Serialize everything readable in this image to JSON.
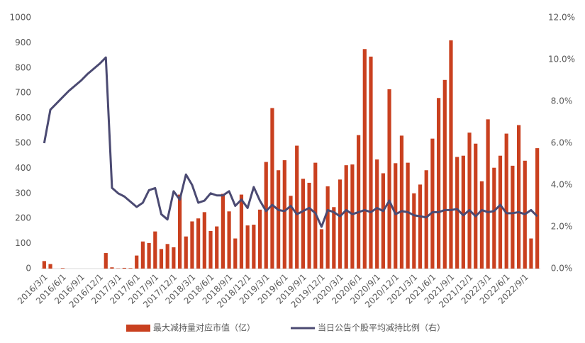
{
  "chart_data": {
    "type": "bar_line",
    "categories": [
      "2016/3/1",
      null,
      null,
      "2016/6/1",
      null,
      null,
      "2016/9/1",
      null,
      null,
      "2016/12/1",
      null,
      null,
      "2017/3/1",
      null,
      null,
      "2017/6/1",
      null,
      null,
      "2017/9/1",
      null,
      null,
      "2017/12/1",
      null,
      null,
      "2018/3/1",
      null,
      null,
      "2018/6/1",
      null,
      null,
      "2018/9/1",
      null,
      null,
      "2018/12/1",
      null,
      null,
      "2019/3/1",
      null,
      null,
      "2019/6/1",
      null,
      null,
      "2019/9/1",
      null,
      null,
      "2019/12/1",
      null,
      null,
      "2020/3/1",
      null,
      null,
      "2020/6/1",
      null,
      null,
      "2020/9/1",
      null,
      null,
      "2020/12/1",
      null,
      null,
      "2021/3/1",
      null,
      null,
      "2021/6/1",
      null,
      null,
      "2021/9/1",
      null,
      null,
      "2021/12/1",
      null,
      null,
      "2022/3/1",
      null,
      null,
      "2022/6/1",
      null,
      null,
      "2022/9/1",
      null,
      null
    ],
    "series": [
      {
        "name": "最大减持量对应市值（亿）",
        "type": "bar",
        "color": "#c9401f",
        "values": [
          30,
          18,
          0,
          2,
          0,
          0,
          0,
          0,
          0,
          0,
          62,
          5,
          1,
          3,
          2,
          52,
          108,
          102,
          148,
          78,
          98,
          85,
          295,
          128,
          188,
          200,
          225,
          150,
          168,
          298,
          228,
          120,
          295,
          172,
          175,
          235,
          425,
          640,
          392,
          432,
          290,
          490,
          358,
          342,
          422,
          157,
          328,
          245,
          355,
          412,
          415,
          532,
          875,
          845,
          435,
          380,
          715,
          420,
          530,
          422,
          300,
          335,
          392,
          518,
          680,
          752,
          910,
          445,
          450,
          542,
          498,
          348,
          595,
          402,
          450,
          538,
          410,
          572,
          430,
          120,
          480
        ]
      },
      {
        "name": "当日公告个股平均减持比例（右）",
        "type": "line",
        "axis": "y2",
        "color": "#4b4a72",
        "values": [
          6.0,
          7.6,
          7.9,
          8.2,
          8.5,
          8.75,
          9.0,
          9.3,
          9.55,
          9.8,
          10.1,
          3.86,
          3.6,
          3.45,
          3.2,
          2.95,
          3.15,
          3.75,
          3.85,
          2.6,
          2.35,
          3.7,
          3.3,
          4.5,
          4.0,
          3.15,
          3.25,
          3.6,
          3.5,
          3.5,
          3.7,
          3.0,
          3.3,
          2.9,
          3.9,
          3.25,
          2.75,
          3.05,
          2.8,
          2.75,
          3.0,
          2.6,
          2.75,
          2.9,
          2.65,
          2.0,
          2.8,
          2.7,
          2.5,
          2.8,
          2.6,
          2.7,
          2.8,
          2.7,
          2.9,
          2.75,
          3.25,
          2.6,
          2.75,
          2.7,
          2.55,
          2.5,
          2.45,
          2.7,
          2.7,
          2.8,
          2.8,
          2.85,
          2.55,
          2.8,
          2.5,
          2.8,
          2.7,
          2.75,
          3.05,
          2.65,
          2.65,
          2.7,
          2.6,
          2.8,
          2.5
        ]
      }
    ],
    "ylim": [
      0,
      1000
    ],
    "yticks": [
      0,
      100,
      200,
      300,
      400,
      500,
      600,
      700,
      800,
      900,
      1000
    ],
    "y2lim": [
      0,
      12
    ],
    "y2ticks": [
      {
        "value": 0,
        "label": "0.0%"
      },
      {
        "value": 2,
        "label": "2.0%"
      },
      {
        "value": 4,
        "label": "4.0%"
      },
      {
        "value": 6,
        "label": "6.0%"
      },
      {
        "value": 8,
        "label": "8.0%"
      },
      {
        "value": 10,
        "label": "10.0%"
      },
      {
        "value": 12,
        "label": "12.0%"
      }
    ],
    "grid": false,
    "legend": "bottom"
  }
}
